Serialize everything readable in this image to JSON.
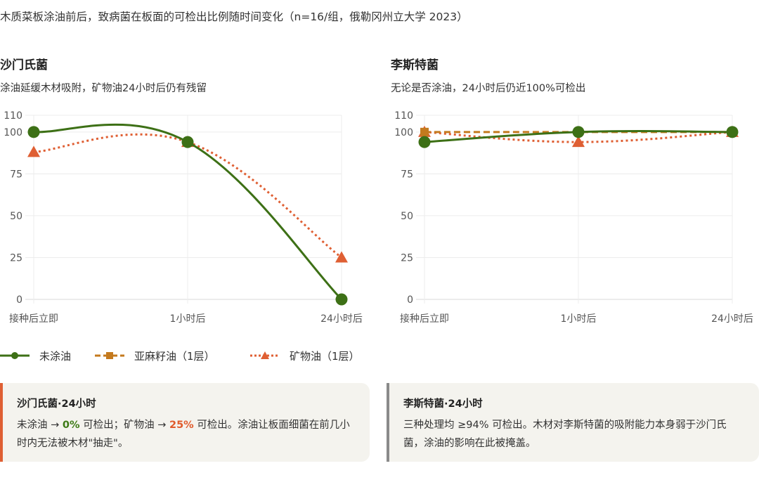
{
  "title": "木质菜板涂油前后，致病菌在板面的可检出比例随时间变化（n=16/组，俄勒冈州立大学 2023）",
  "colors": {
    "untreated": "#3d7016",
    "linseed": "#c47a1e",
    "mineral": "#df5f33",
    "grid": "#ececec",
    "card_bg": "#f4f3ee",
    "card_left_border": "#df5f33",
    "card_right_border": "#8a8a8a"
  },
  "legend": [
    {
      "label": "未涂油",
      "icon": "line-circle-icon"
    },
    {
      "label": "亚麻籽油（1层）",
      "icon": "dashed-square-icon"
    },
    {
      "label": "矿物油（1层）",
      "icon": "dotted-triangle-icon"
    }
  ],
  "chart_data": [
    {
      "type": "line",
      "title": "沙门氏菌",
      "subtitle": "涂油延缓木材吸附，矿物油24小时后仍有残留",
      "categories": [
        "接种后立即",
        "1小时后",
        "24小时后"
      ],
      "ylim": [
        0,
        110
      ],
      "yticks": [
        0,
        25,
        50,
        75,
        100,
        110
      ],
      "grid": true,
      "series": [
        {
          "name": "未涂油",
          "values": [
            100,
            94,
            0
          ]
        },
        {
          "name": "亚麻籽油（1层）",
          "values": [
            null,
            null,
            null
          ]
        },
        {
          "name": "矿物油（1层）",
          "values": [
            88,
            94,
            25
          ]
        }
      ]
    },
    {
      "type": "line",
      "title": "李斯特菌",
      "subtitle": "无论是否涂油，24小时后仍近100%可检出",
      "categories": [
        "接种后立即",
        "1小时后",
        "24小时后"
      ],
      "ylim": [
        0,
        110
      ],
      "yticks": [
        0,
        25,
        50,
        75,
        100,
        110
      ],
      "grid": true,
      "series": [
        {
          "name": "未涂油",
          "values": [
            94,
            100,
            100
          ]
        },
        {
          "name": "亚麻籽油（1层）",
          "values": [
            100,
            100,
            100
          ]
        },
        {
          "name": "矿物油（1层）",
          "values": [
            100,
            94,
            100
          ]
        }
      ]
    }
  ],
  "cards": [
    {
      "title": "沙门氏菌·24小时",
      "t1": "未涂油 → ",
      "v1": "0%",
      "t2": " 可检出；矿物油 → ",
      "v2": "25%",
      "t3": " 可检出。涂油让板面细菌在前几小时内无法被木材\"抽走\"。"
    },
    {
      "title": "李斯特菌·24小时",
      "text": "三种处理均 ≥94% 可检出。木材对李斯特菌的吸附能力本身弱于沙门氏菌，涂油的影响在此被掩盖。"
    }
  ]
}
